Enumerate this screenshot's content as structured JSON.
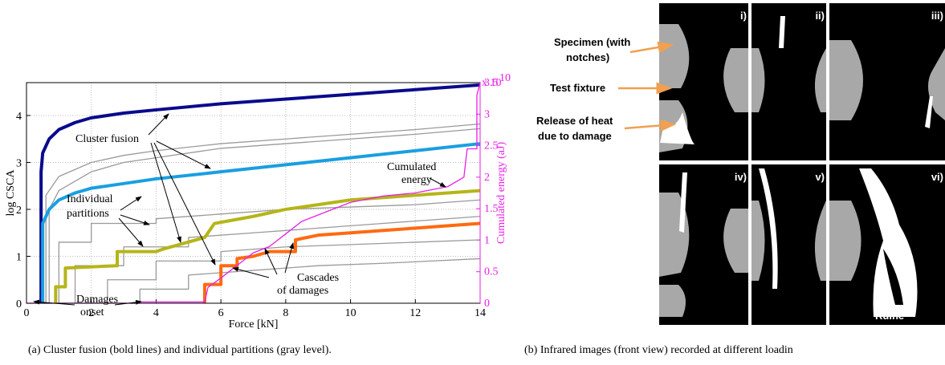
{
  "chart_data": {
    "type": "line",
    "xlabel": "Force [kN]",
    "ylabel": "log CSCA",
    "y2label": "Cumulated energy (aJ)",
    "y2_multiplier": {
      "base": "x 10",
      "exponent": "10"
    },
    "xlim": [
      0,
      14
    ],
    "xticks": [
      0,
      2,
      4,
      6,
      8,
      10,
      12,
      14
    ],
    "ylim": [
      0,
      4.7
    ],
    "yticks": [
      0,
      1,
      2,
      3,
      4
    ],
    "y2lim": [
      0,
      3.5
    ],
    "y2ticks": [
      0,
      0.5,
      1,
      1.5,
      2,
      2.5,
      3,
      3.5
    ],
    "grid": true,
    "series": [
      {
        "color": "#9a9a9a",
        "x": [
          0.6,
          0.6,
          1,
          2,
          3,
          4,
          6,
          8,
          10,
          12,
          14
        ],
        "values": [
          0,
          2.3,
          2.7,
          3.0,
          3.15,
          3.25,
          3.4,
          3.5,
          3.6,
          3.7,
          3.82
        ]
      },
      {
        "color": "#9a9a9a",
        "x": [
          0.7,
          0.7,
          1,
          2,
          3,
          4,
          6,
          8,
          10,
          12,
          14
        ],
        "values": [
          0,
          2.0,
          2.4,
          2.8,
          3.0,
          3.1,
          3.3,
          3.4,
          3.5,
          3.6,
          3.72
        ]
      },
      {
        "color": "#9a9a9a",
        "x": [
          1,
          1,
          2,
          2,
          4,
          4,
          6,
          8,
          10,
          12,
          14
        ],
        "values": [
          0,
          1.3,
          1.3,
          1.7,
          1.7,
          1.8,
          1.9,
          2.0,
          2.05,
          2.1,
          2.2
        ]
      },
      {
        "color": "#9a9a9a",
        "x": [
          1.5,
          1.5,
          3,
          3,
          5,
          5,
          7,
          9,
          11,
          14
        ],
        "values": [
          0,
          0.8,
          0.8,
          1.2,
          1.2,
          1.4,
          1.5,
          1.6,
          1.7,
          1.85
        ]
      },
      {
        "color": "#9a9a9a",
        "x": [
          2.5,
          2.5,
          4,
          4,
          6,
          6,
          8,
          10,
          12,
          14
        ],
        "values": [
          0,
          0.5,
          0.5,
          0.9,
          0.9,
          1.1,
          1.2,
          1.25,
          1.3,
          1.35
        ]
      },
      {
        "color": "#9a9a9a",
        "x": [
          3.5,
          3.5,
          5,
          5,
          7,
          9,
          11,
          14
        ],
        "values": [
          0,
          0.3,
          0.3,
          0.6,
          0.7,
          0.8,
          0.85,
          0.95
        ]
      },
      {
        "color": "#0a0a8c",
        "x": [
          0.45,
          0.45,
          0.5,
          0.7,
          1,
          1.5,
          2,
          3,
          4,
          6,
          8,
          10,
          12,
          14
        ],
        "values": [
          0,
          2.8,
          3.2,
          3.5,
          3.7,
          3.85,
          3.95,
          4.05,
          4.12,
          4.25,
          4.35,
          4.45,
          4.55,
          4.65
        ]
      },
      {
        "color": "#1a9fe0",
        "x": [
          0.5,
          0.5,
          0.7,
          1,
          1.5,
          2,
          3,
          4,
          6,
          8,
          10,
          12,
          14
        ],
        "values": [
          0,
          1.7,
          2.0,
          2.2,
          2.35,
          2.45,
          2.55,
          2.65,
          2.8,
          2.95,
          3.1,
          3.25,
          3.4
        ]
      },
      {
        "color": "#b5b519",
        "x": [
          0.9,
          0.9,
          1.2,
          1.2,
          2.8,
          2.8,
          4,
          4.2,
          5.5,
          5.8,
          6.2,
          7,
          8,
          8.5,
          10,
          12,
          14
        ],
        "values": [
          0,
          0.35,
          0.35,
          0.75,
          0.8,
          1.1,
          1.1,
          1.15,
          1.4,
          1.7,
          1.75,
          1.85,
          2.0,
          2.05,
          2.2,
          2.3,
          2.4
        ]
      },
      {
        "color": "#ff6a10",
        "x": [
          5.5,
          5.5,
          6,
          6,
          6.5,
          6.5,
          7,
          7.5,
          8.3,
          8.3,
          9,
          10,
          12,
          14
        ],
        "values": [
          0,
          0.4,
          0.4,
          0.8,
          0.8,
          0.95,
          1.0,
          1.1,
          1.1,
          1.35,
          1.45,
          1.5,
          1.6,
          1.7
        ]
      },
      {
        "color": "#e81fe8",
        "axis": "y2",
        "x": [
          0,
          3.5,
          3.5,
          5.5,
          5.6,
          6,
          6.5,
          7,
          7.5,
          8,
          8.5,
          9,
          10,
          11,
          12,
          13,
          13.5,
          13.6,
          13.9,
          13.9,
          14
        ],
        "values": [
          0,
          0,
          0.02,
          0.02,
          0.25,
          0.4,
          0.6,
          0.8,
          0.9,
          1.1,
          1.3,
          1.4,
          1.6,
          1.7,
          1.75,
          1.85,
          2.0,
          2.45,
          2.45,
          3.3,
          3.5
        ]
      }
    ],
    "annotations": [
      {
        "lines": [
          "Cluster fusion"
        ]
      },
      {
        "lines": [
          "Individual",
          "partitions"
        ]
      },
      {
        "lines": [
          "Cumulated",
          "energy"
        ]
      },
      {
        "lines": [
          "Damages",
          "onset"
        ]
      },
      {
        "lines": [
          "Cascades",
          "of damages"
        ]
      }
    ]
  },
  "figure_b": {
    "panel_labels": [
      "i)",
      "ii)",
      "iii)",
      "iv)",
      "v)",
      "vi)"
    ],
    "overlay_text": "Ruine",
    "annotations": [
      {
        "lines": [
          "Specimen (with",
          "notches)"
        ]
      },
      {
        "lines": [
          "Test fixture"
        ]
      },
      {
        "lines": [
          "Release of heat",
          "due to damage"
        ]
      }
    ]
  },
  "captions": [
    "(a) Cluster fusion (bold lines) and individual partitions (gray level).",
    "(b) Infrared images (front view) recorded at different loadin"
  ]
}
